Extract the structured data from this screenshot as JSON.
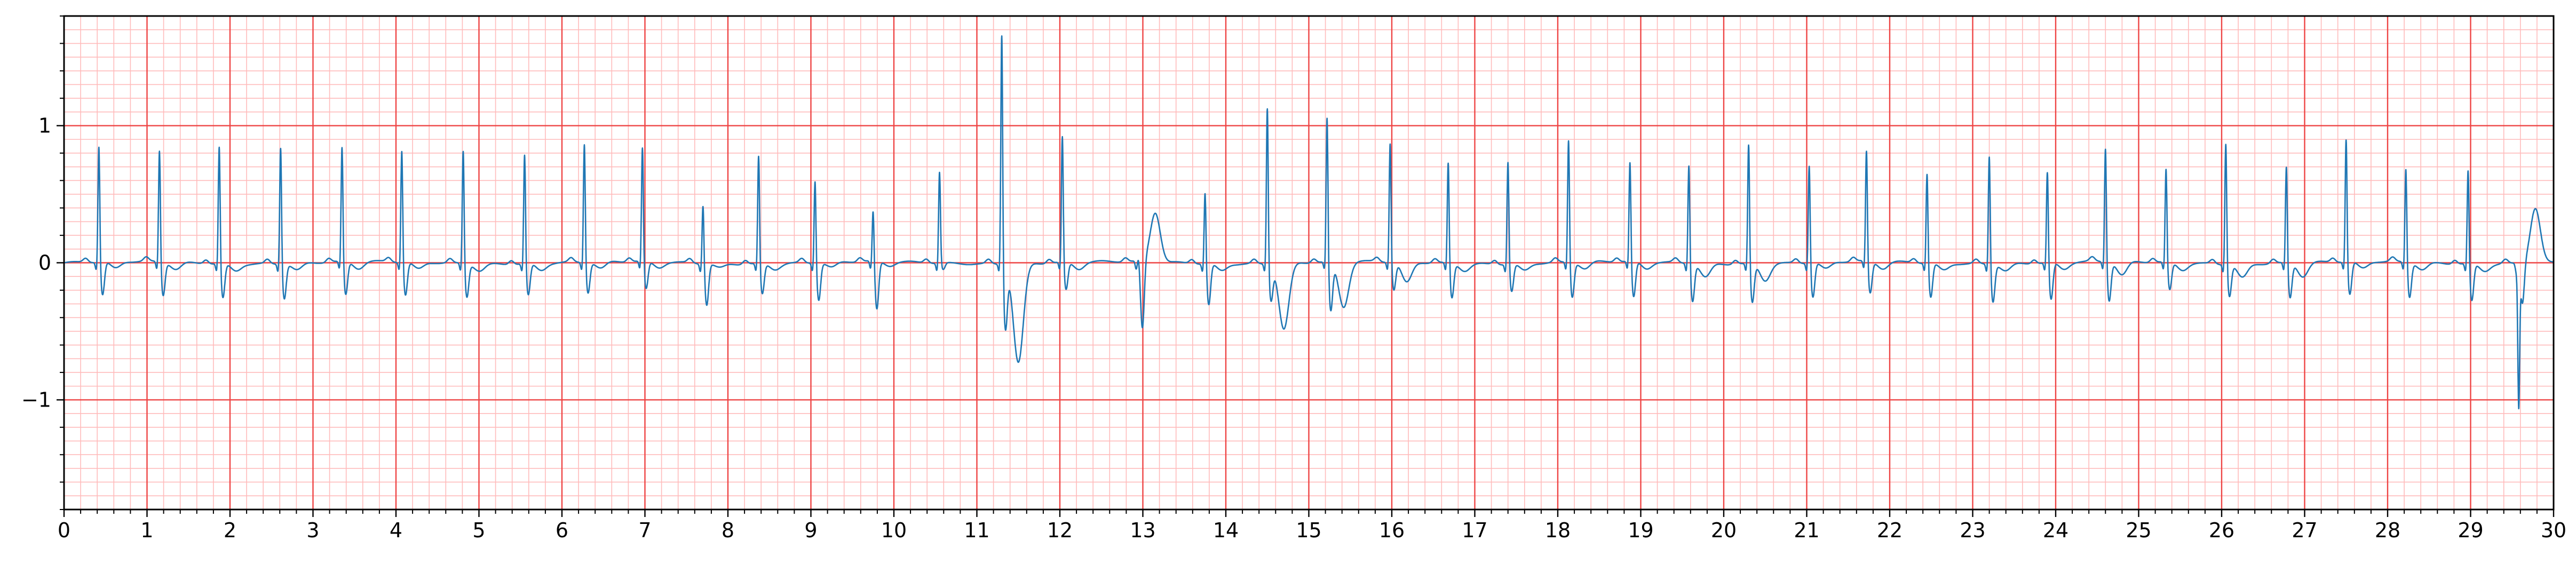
{
  "chart_data": {
    "type": "line",
    "title": "",
    "xlabel": "",
    "ylabel": "",
    "xlim": [
      0,
      30
    ],
    "ylim": [
      -1.8,
      1.8
    ],
    "x_ticks": [
      0,
      1,
      2,
      3,
      4,
      5,
      6,
      7,
      8,
      9,
      10,
      11,
      12,
      13,
      14,
      15,
      16,
      17,
      18,
      19,
      20,
      21,
      22,
      23,
      24,
      25,
      26,
      27,
      28,
      29,
      30
    ],
    "x_tick_labels": [
      "0",
      "1",
      "2",
      "3",
      "4",
      "5",
      "6",
      "7",
      "8",
      "9",
      "10",
      "11",
      "12",
      "13",
      "14",
      "15",
      "16",
      "17",
      "18",
      "19",
      "20",
      "21",
      "22",
      "23",
      "24",
      "25",
      "26",
      "27",
      "28",
      "29",
      "30"
    ],
    "y_ticks": [
      -1,
      0,
      1
    ],
    "y_tick_labels": [
      "−1",
      "0",
      "1"
    ],
    "grid": {
      "major": true,
      "minor": true,
      "major_step_x": 1,
      "minor_step_x": 0.2,
      "major_step_y": 1,
      "minor_step_y": 0.1
    },
    "colors": {
      "line": "#1f77b4",
      "major_grid": "#ee4444",
      "minor_grid": "#ffbbbb",
      "axis": "#000000"
    },
    "beats": [
      {
        "t": 0.42,
        "r": 0.87,
        "s": -0.24,
        "tw": -0.05
      },
      {
        "t": 1.15,
        "r": 0.84,
        "s": -0.24,
        "tw": -0.05
      },
      {
        "t": 1.87,
        "r": 0.88,
        "s": -0.25,
        "tw": -0.05
      },
      {
        "t": 2.61,
        "r": 0.88,
        "s": -0.25,
        "tw": -0.05
      },
      {
        "t": 3.35,
        "r": 0.86,
        "s": -0.24,
        "tw": -0.05
      },
      {
        "t": 4.07,
        "r": 0.84,
        "s": -0.24,
        "tw": -0.05
      },
      {
        "t": 4.81,
        "r": 0.85,
        "s": -0.24,
        "tw": -0.05
      },
      {
        "t": 5.55,
        "r": 0.82,
        "s": -0.23,
        "tw": -0.05
      },
      {
        "t": 6.27,
        "r": 0.89,
        "s": -0.22,
        "tw": -0.05
      },
      {
        "t": 6.97,
        "r": 0.85,
        "s": -0.2,
        "tw": -0.04
      },
      {
        "t": 7.7,
        "r": 0.46,
        "s": -0.3,
        "tw": -0.03
      },
      {
        "t": 8.37,
        "r": 0.81,
        "s": -0.22,
        "tw": -0.04
      },
      {
        "t": 9.05,
        "r": 0.63,
        "s": -0.27,
        "tw": -0.04
      },
      {
        "t": 9.75,
        "r": 0.4,
        "s": -0.35,
        "tw": -0.03
      },
      {
        "t": 10.55,
        "r": 0.67,
        "s": -0.05,
        "tw": 0.0
      },
      {
        "t": 11.3,
        "r": 1.73,
        "s": -0.45,
        "tw": -0.72
      },
      {
        "t": 12.03,
        "r": 0.94,
        "s": -0.2,
        "tw": -0.05
      },
      {
        "t": 12.95,
        "r": 0.05,
        "s": -0.5,
        "tw": 0.36
      },
      {
        "t": 13.75,
        "r": 0.55,
        "s": -0.3,
        "tw": -0.05
      },
      {
        "t": 14.5,
        "r": 1.17,
        "s": -0.25,
        "tw": -0.48
      },
      {
        "t": 15.22,
        "r": 1.09,
        "s": -0.35,
        "tw": -0.33
      },
      {
        "t": 15.98,
        "r": 0.89,
        "s": -0.2,
        "tw": -0.15
      },
      {
        "t": 16.68,
        "r": 0.76,
        "s": -0.25,
        "tw": -0.05
      },
      {
        "t": 17.4,
        "r": 0.77,
        "s": -0.2,
        "tw": -0.05
      },
      {
        "t": 18.13,
        "r": 0.92,
        "s": -0.25,
        "tw": -0.05
      },
      {
        "t": 18.87,
        "r": 0.75,
        "s": -0.26,
        "tw": -0.05
      },
      {
        "t": 19.58,
        "r": 0.75,
        "s": -0.27,
        "tw": -0.1
      },
      {
        "t": 20.3,
        "r": 0.9,
        "s": -0.28,
        "tw": -0.12
      },
      {
        "t": 21.03,
        "r": 0.74,
        "s": -0.25,
        "tw": -0.05
      },
      {
        "t": 21.72,
        "r": 0.83,
        "s": -0.23,
        "tw": -0.05
      },
      {
        "t": 22.45,
        "r": 0.68,
        "s": -0.25,
        "tw": -0.05
      },
      {
        "t": 23.2,
        "r": 0.82,
        "s": -0.27,
        "tw": -0.05
      },
      {
        "t": 23.9,
        "r": 0.69,
        "s": -0.27,
        "tw": -0.05
      },
      {
        "t": 24.6,
        "r": 0.86,
        "s": -0.28,
        "tw": -0.1
      },
      {
        "t": 25.33,
        "r": 0.7,
        "s": -0.2,
        "tw": -0.05
      },
      {
        "t": 26.05,
        "r": 0.91,
        "s": -0.23,
        "tw": -0.1
      },
      {
        "t": 26.78,
        "r": 0.73,
        "s": -0.25,
        "tw": -0.1
      },
      {
        "t": 27.5,
        "r": 0.92,
        "s": -0.24,
        "tw": -0.05
      },
      {
        "t": 28.22,
        "r": 0.71,
        "s": -0.25,
        "tw": -0.05
      },
      {
        "t": 28.97,
        "r": 0.71,
        "s": -0.27,
        "tw": -0.05
      },
      {
        "t": 29.58,
        "r": -1.02,
        "s": -0.3,
        "tw": 0.4
      }
    ]
  }
}
